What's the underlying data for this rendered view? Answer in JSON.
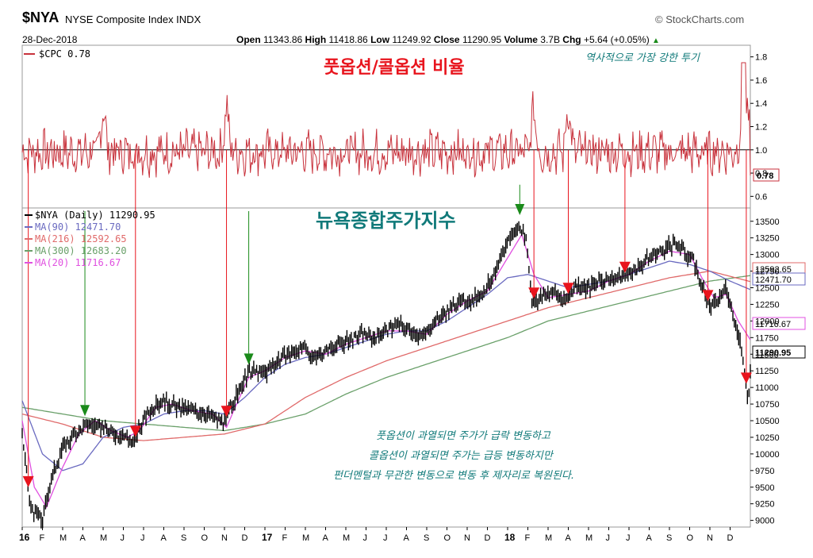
{
  "header": {
    "symbol": "$NYA",
    "name": "NYSE Composite Index INDX",
    "date": "28-Dec-2018",
    "source": "© StockCharts.com",
    "open_label": "Open",
    "open": "11343.86",
    "high_label": "High",
    "high": "11418.86",
    "low_label": "Low",
    "low": "11249.92",
    "close_label": "Close",
    "close": "11290.95",
    "volume_label": "Volume",
    "volume": "3.7B",
    "chg_label": "Chg",
    "chg": "+5.64 (+0.05%)",
    "chg_arrow": "▲"
  },
  "colors": {
    "cpc": "#c8323c",
    "ma90": "#6a6ac0",
    "ma216": "#e06a6a",
    "ma300": "#6aa06a",
    "ma20": "#e050e0",
    "price": "#000000",
    "sell_arrow": "#e8141d",
    "buy_arrow": "#1a8a1a",
    "teal": "#117a7a"
  },
  "annotations": {
    "upper_title": "풋옵션/콜옵션 비율",
    "upper_note": "역사적으로 가장 강한 투기",
    "lower_title": "뉴욕종합주가지수",
    "note_lines": [
      "풋옵션이 과열되면 주가가 급락 변동하고",
      "콜옵션이 과열되면 주가는 급등 변동하지만",
      "펀더멘털과 무관한 변동으로 변동 후 제자리로 복원된다."
    ]
  },
  "chart_data": [
    {
      "type": "line",
      "panel": "upper",
      "legend": "$CPC 0.78",
      "series": [
        {
          "name": "$CPC",
          "last": 0.78
        }
      ],
      "yticks": [
        0.6,
        0.8,
        1.0,
        1.2,
        1.4,
        1.6,
        1.8
      ],
      "ylim": [
        0.5,
        1.9
      ],
      "reference_line": 1.0,
      "last_value_label": "0.78"
    },
    {
      "type": "line",
      "panel": "lower",
      "legend": [
        {
          "name": "$NYA (Daily)",
          "value": "11290.95"
        },
        {
          "name": "MA(90)",
          "value": "12471.70"
        },
        {
          "name": "MA(216)",
          "value": "12592.65"
        },
        {
          "name": "MA(300)",
          "value": "12683.20"
        },
        {
          "name": "MA(20)",
          "value": "11716.67"
        }
      ],
      "ylim": [
        8900,
        13700
      ],
      "yticks": [
        9000,
        9250,
        9500,
        9750,
        10000,
        10250,
        10500,
        10750,
        11000,
        11250,
        11500,
        11750,
        12000,
        12250,
        12500,
        12750,
        13000,
        13250,
        13500
      ],
      "right_labels": [
        "12592.65",
        "12471.70",
        "11716.67",
        "11290.95"
      ],
      "xlabels": [
        "16",
        "F",
        "M",
        "A",
        "M",
        "J",
        "J",
        "A",
        "S",
        "O",
        "N",
        "D",
        "17",
        "F",
        "M",
        "A",
        "M",
        "J",
        "J",
        "A",
        "S",
        "O",
        "N",
        "D",
        "18",
        "F",
        "M",
        "A",
        "M",
        "J",
        "J",
        "A",
        "S",
        "O",
        "N",
        "D"
      ],
      "xlim_months": [
        0,
        36
      ],
      "price_anchors": [
        [
          0,
          10300
        ],
        [
          0.4,
          9200
        ],
        [
          1.0,
          9000
        ],
        [
          1.4,
          9600
        ],
        [
          2.0,
          10100
        ],
        [
          2.6,
          10300
        ],
        [
          3.2,
          10450
        ],
        [
          3.9,
          10400
        ],
        [
          4.6,
          10300
        ],
        [
          5.2,
          10250
        ],
        [
          5.5,
          10150
        ],
        [
          5.8,
          10400
        ],
        [
          6.4,
          10700
        ],
        [
          7.0,
          10800
        ],
        [
          7.6,
          10700
        ],
        [
          8.4,
          10650
        ],
        [
          9.2,
          10600
        ],
        [
          10.0,
          10450
        ],
        [
          10.3,
          10700
        ],
        [
          10.8,
          11000
        ],
        [
          11.3,
          11250
        ],
        [
          12.0,
          11200
        ],
        [
          12.6,
          11400
        ],
        [
          13.2,
          11500
        ],
        [
          13.8,
          11600
        ],
        [
          14.4,
          11450
        ],
        [
          15.0,
          11550
        ],
        [
          15.6,
          11650
        ],
        [
          16.2,
          11700
        ],
        [
          16.8,
          11800
        ],
        [
          17.4,
          11750
        ],
        [
          18.0,
          11850
        ],
        [
          18.6,
          11950
        ],
        [
          19.2,
          11850
        ],
        [
          19.8,
          11750
        ],
        [
          20.4,
          12000
        ],
        [
          21.0,
          12150
        ],
        [
          21.6,
          12300
        ],
        [
          22.2,
          12300
        ],
        [
          22.8,
          12450
        ],
        [
          23.4,
          12700
        ],
        [
          24.0,
          13200
        ],
        [
          24.6,
          13450
        ],
        [
          24.9,
          13250
        ],
        [
          25.2,
          12300
        ],
        [
          25.6,
          12350
        ],
        [
          26.2,
          12450
        ],
        [
          26.8,
          12300
        ],
        [
          27.4,
          12550
        ],
        [
          28.0,
          12500
        ],
        [
          28.6,
          12600
        ],
        [
          29.4,
          12650
        ],
        [
          30.2,
          12750
        ],
        [
          31.0,
          12950
        ],
        [
          31.8,
          13100
        ],
        [
          32.4,
          13150
        ],
        [
          33.2,
          12900
        ],
        [
          33.6,
          12500
        ],
        [
          34.0,
          12200
        ],
        [
          34.4,
          12300
        ],
        [
          34.8,
          12500
        ],
        [
          35.2,
          12050
        ],
        [
          35.6,
          11500
        ],
        [
          35.9,
          10800
        ],
        [
          36.0,
          11290
        ]
      ],
      "ma90_anchors": [
        [
          0,
          10800
        ],
        [
          1,
          10000
        ],
        [
          2,
          9750
        ],
        [
          3,
          9850
        ],
        [
          4,
          10250
        ],
        [
          5,
          10400
        ],
        [
          6,
          10450
        ],
        [
          7,
          10600
        ],
        [
          8,
          10650
        ],
        [
          9,
          10650
        ],
        [
          10,
          10600
        ],
        [
          11,
          10850
        ],
        [
          12,
          11150
        ],
        [
          13,
          11350
        ],
        [
          14,
          11450
        ],
        [
          15,
          11500
        ],
        [
          16,
          11600
        ],
        [
          17,
          11700
        ],
        [
          18,
          11800
        ],
        [
          19,
          11850
        ],
        [
          20,
          11850
        ],
        [
          21,
          12000
        ],
        [
          22,
          12200
        ],
        [
          23,
          12400
        ],
        [
          24,
          12650
        ],
        [
          25,
          12700
        ],
        [
          26,
          12600
        ],
        [
          27,
          12500
        ],
        [
          28,
          12550
        ],
        [
          29,
          12600
        ],
        [
          30,
          12700
        ],
        [
          31,
          12800
        ],
        [
          32,
          12900
        ],
        [
          33,
          12850
        ],
        [
          34,
          12750
        ],
        [
          35,
          12600
        ],
        [
          36,
          12472
        ]
      ],
      "ma216_anchors": [
        [
          0,
          10600
        ],
        [
          2,
          10450
        ],
        [
          4,
          10250
        ],
        [
          6,
          10200
        ],
        [
          8,
          10250
        ],
        [
          10,
          10300
        ],
        [
          12,
          10450
        ],
        [
          14,
          10850
        ],
        [
          16,
          11150
        ],
        [
          18,
          11400
        ],
        [
          20,
          11600
        ],
        [
          22,
          11800
        ],
        [
          24,
          12000
        ],
        [
          26,
          12200
        ],
        [
          28,
          12350
        ],
        [
          30,
          12500
        ],
        [
          32,
          12650
        ],
        [
          34,
          12750
        ],
        [
          36,
          12593
        ]
      ],
      "ma300_anchors": [
        [
          0,
          10700
        ],
        [
          2,
          10600
        ],
        [
          4,
          10500
        ],
        [
          6,
          10450
        ],
        [
          8,
          10400
        ],
        [
          10,
          10350
        ],
        [
          12,
          10450
        ],
        [
          14,
          10600
        ],
        [
          16,
          10900
        ],
        [
          18,
          11150
        ],
        [
          20,
          11350
        ],
        [
          22,
          11550
        ],
        [
          24,
          11750
        ],
        [
          26,
          12000
        ],
        [
          28,
          12150
        ],
        [
          30,
          12300
        ],
        [
          32,
          12450
        ],
        [
          34,
          12600
        ],
        [
          36,
          12683
        ]
      ],
      "ma20_anchors": [
        [
          0,
          10500
        ],
        [
          0.6,
          9500
        ],
        [
          1.2,
          9200
        ],
        [
          2,
          9800
        ],
        [
          2.8,
          10300
        ],
        [
          3.6,
          10500
        ],
        [
          4.4,
          10350
        ],
        [
          5.2,
          10250
        ],
        [
          5.8,
          10350
        ],
        [
          6.6,
          10700
        ],
        [
          7.4,
          10750
        ],
        [
          8.4,
          10650
        ],
        [
          9.4,
          10600
        ],
        [
          10.1,
          10400
        ],
        [
          10.6,
          10750
        ],
        [
          11.2,
          11150
        ],
        [
          12.0,
          11250
        ],
        [
          13.0,
          11450
        ],
        [
          14.0,
          11550
        ],
        [
          15.0,
          11500
        ],
        [
          16.0,
          11650
        ],
        [
          17.0,
          11750
        ],
        [
          18.0,
          11850
        ],
        [
          19.0,
          11850
        ],
        [
          20.0,
          11800
        ],
        [
          21.0,
          12100
        ],
        [
          22.0,
          12300
        ],
        [
          23.0,
          12450
        ],
        [
          24.0,
          12950
        ],
        [
          24.7,
          13300
        ],
        [
          25.3,
          12700
        ],
        [
          26.0,
          12350
        ],
        [
          27.0,
          12400
        ],
        [
          28.0,
          12450
        ],
        [
          29.0,
          12600
        ],
        [
          30.0,
          12700
        ],
        [
          31.0,
          12900
        ],
        [
          32.0,
          13050
        ],
        [
          33.0,
          13000
        ],
        [
          33.6,
          12650
        ],
        [
          34.2,
          12350
        ],
        [
          34.8,
          12400
        ],
        [
          35.4,
          12000
        ],
        [
          36.0,
          11717
        ]
      ],
      "sell_signals_months": [
        0.3,
        5.6,
        10.1,
        25.3,
        27.0,
        29.8,
        33.9,
        35.8
      ],
      "buy_signals_months": [
        3.1,
        11.2,
        24.6
      ]
    }
  ]
}
